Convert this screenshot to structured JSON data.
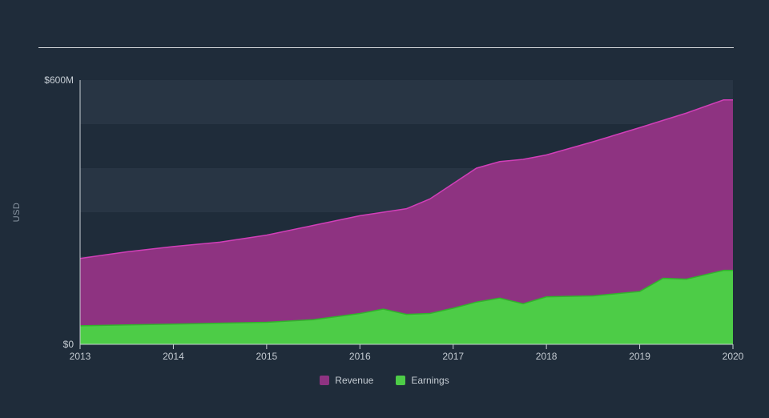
{
  "chart": {
    "type": "area",
    "background_color": "#1f2c3a",
    "grid_band_color": "#283544",
    "axis_line_color": "#c9cfd5",
    "tick_label_color": "#c5ccd3",
    "axis_title_color": "#8a96a3",
    "y_axis_title": "USD",
    "xlim": [
      2013,
      2020
    ],
    "ylim": [
      0,
      600
    ],
    "x_ticks": [
      2013,
      2014,
      2015,
      2016,
      2017,
      2018,
      2019,
      2020
    ],
    "x_tick_labels": [
      "2013",
      "2014",
      "2015",
      "2016",
      "2017",
      "2018",
      "2019",
      "2020"
    ],
    "y_ticks": [
      0,
      600
    ],
    "y_tick_labels": [
      "$0",
      "$600M"
    ],
    "y_bands": [
      [
        100,
        200
      ],
      [
        300,
        400
      ],
      [
        500,
        600
      ]
    ],
    "label_fontsize": 12,
    "title_fontsize": 11,
    "series": [
      {
        "name": "Revenue",
        "fill_color": "#8e3381",
        "line_color": "#d13fb8",
        "line_width": 1.5,
        "x": [
          2013,
          2013.5,
          2014,
          2014.5,
          2015,
          2015.5,
          2016,
          2016.25,
          2016.5,
          2016.75,
          2017,
          2017.25,
          2017.5,
          2017.75,
          2018,
          2018.5,
          2019,
          2019.5,
          2019.9,
          2020
        ],
        "y": [
          195,
          210,
          222,
          232,
          248,
          270,
          292,
          300,
          308,
          330,
          365,
          400,
          415,
          420,
          430,
          460,
          492,
          525,
          555,
          555
        ]
      },
      {
        "name": "Earnings",
        "fill_color": "#4dcc47",
        "line_color": "#31b32b",
        "line_width": 1.5,
        "x": [
          2013,
          2013.5,
          2014,
          2014.5,
          2015,
          2015.5,
          2016,
          2016.25,
          2016.5,
          2016.75,
          2017,
          2017.25,
          2017.5,
          2017.75,
          2018,
          2018.5,
          2019,
          2019.25,
          2019.5,
          2019.9,
          2020
        ],
        "y": [
          42,
          44,
          46,
          48,
          50,
          56,
          70,
          80,
          68,
          70,
          82,
          96,
          105,
          92,
          108,
          110,
          120,
          150,
          148,
          168,
          168
        ]
      }
    ],
    "legend": {
      "position": "bottom-center",
      "items": [
        {
          "label": "Revenue",
          "color": "#8e3381"
        },
        {
          "label": "Earnings",
          "color": "#4dcc47"
        }
      ]
    }
  }
}
